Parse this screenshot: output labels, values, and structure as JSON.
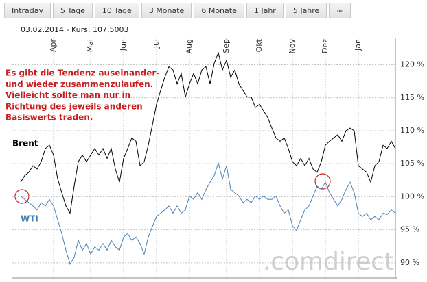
{
  "tabs": [
    "Intraday",
    "5 Tage",
    "10 Tage",
    "3 Monate",
    "6 Monate",
    "1 Jahr",
    "5 Jahre",
    "∞"
  ],
  "chart_data": {
    "type": "line",
    "subtitle": "03.02.2014 - Kurs: 107,5003",
    "annotation": [
      "Es gibt die Tendenz auseinander-",
      "und wieder zusammenzulaufen.",
      "Vielleicht sollte man nur in",
      "Richtung des jeweils anderen",
      "Basiswerts traden."
    ],
    "watermark": ".comdirect",
    "categories": [
      null,
      null,
      null,
      null,
      null,
      null,
      null,
      null,
      "Apr",
      null,
      null,
      null,
      null,
      null,
      null,
      null,
      null,
      "Mai",
      null,
      null,
      null,
      null,
      null,
      null,
      null,
      "Jun",
      null,
      null,
      null,
      null,
      null,
      null,
      null,
      "Jul",
      null,
      null,
      null,
      null,
      null,
      null,
      null,
      "Aug",
      null,
      null,
      null,
      null,
      null,
      null,
      null,
      null,
      "Sep",
      null,
      null,
      null,
      null,
      null,
      null,
      null,
      "Okt",
      null,
      null,
      null,
      null,
      null,
      null,
      null,
      "Nov",
      null,
      null,
      null,
      null,
      null,
      null,
      null,
      "Dez",
      null,
      null,
      null,
      null,
      null,
      null,
      null,
      "Jan",
      null,
      null,
      null,
      null,
      null,
      null,
      null,
      null,
      null
    ],
    "series": [
      {
        "name": "Brent",
        "color": "#000000",
        "values": [
          102.2,
          103.2,
          103.7,
          104.7,
          104.2,
          105.3,
          107.3,
          107.8,
          106.3,
          102.7,
          100.6,
          98.6,
          97.5,
          101.6,
          105.3,
          106.3,
          105.3,
          106.3,
          107.3,
          106.3,
          107.3,
          105.8,
          107.3,
          104.2,
          102.2,
          105.8,
          107.3,
          108.9,
          108.4,
          104.7,
          105.3,
          107.8,
          110.9,
          114.0,
          116.1,
          118.1,
          119.7,
          119.2,
          117.1,
          118.7,
          115.1,
          117.1,
          118.7,
          117.1,
          119.2,
          119.7,
          117.1,
          120.2,
          121.8,
          119.2,
          120.7,
          118.1,
          119.2,
          117.1,
          116.1,
          115.1,
          115.1,
          113.5,
          114.0,
          113.0,
          112.0,
          110.4,
          108.9,
          108.4,
          108.9,
          107.3,
          105.3,
          104.7,
          105.8,
          104.7,
          105.8,
          104.2,
          103.7,
          105.3,
          107.8,
          108.4,
          108.9,
          109.4,
          108.4,
          110.0,
          110.4,
          110.0,
          104.7,
          104.2,
          103.7,
          102.2,
          104.7,
          105.3,
          107.8,
          107.3,
          108.4,
          107.3
        ]
      },
      {
        "name": "WTI",
        "color": "#4a7fb5",
        "values": [
          100.1,
          99.6,
          99.1,
          98.6,
          98.0,
          99.1,
          98.6,
          99.6,
          98.6,
          96.5,
          94.4,
          91.9,
          89.8,
          90.8,
          93.4,
          91.9,
          92.9,
          91.3,
          92.4,
          91.9,
          92.9,
          91.9,
          93.4,
          92.4,
          91.9,
          93.9,
          94.4,
          93.4,
          93.9,
          92.9,
          91.3,
          93.9,
          95.5,
          97.0,
          97.5,
          98.0,
          98.6,
          97.5,
          98.6,
          97.5,
          98.0,
          100.1,
          99.6,
          100.6,
          99.6,
          101.1,
          102.2,
          103.2,
          105.1,
          102.7,
          104.7,
          101.1,
          100.6,
          100.1,
          99.1,
          99.6,
          99.1,
          100.1,
          99.6,
          100.1,
          99.6,
          99.6,
          100.1,
          98.6,
          97.5,
          98.0,
          95.6,
          94.9,
          96.5,
          98.0,
          98.6,
          100.1,
          101.6,
          101.1,
          102.2,
          100.6,
          99.6,
          98.6,
          99.6,
          101.1,
          102.2,
          100.6,
          97.5,
          97.0,
          97.5,
          96.5,
          97.0,
          96.5,
          97.5,
          97.3,
          98.0,
          97.5
        ]
      }
    ],
    "ylim": [
      87.7,
      124.1
    ],
    "yticks": [
      {
        "value": 90,
        "label": "90 %"
      },
      {
        "value": 95,
        "label": "95 %"
      },
      {
        "value": 100,
        "label": "100 %"
      },
      {
        "value": 105,
        "label": "105 %"
      },
      {
        "value": 110,
        "label": "110 %"
      },
      {
        "value": 115,
        "label": "115 %"
      },
      {
        "value": 120,
        "label": "120 %"
      }
    ],
    "grid": true
  }
}
